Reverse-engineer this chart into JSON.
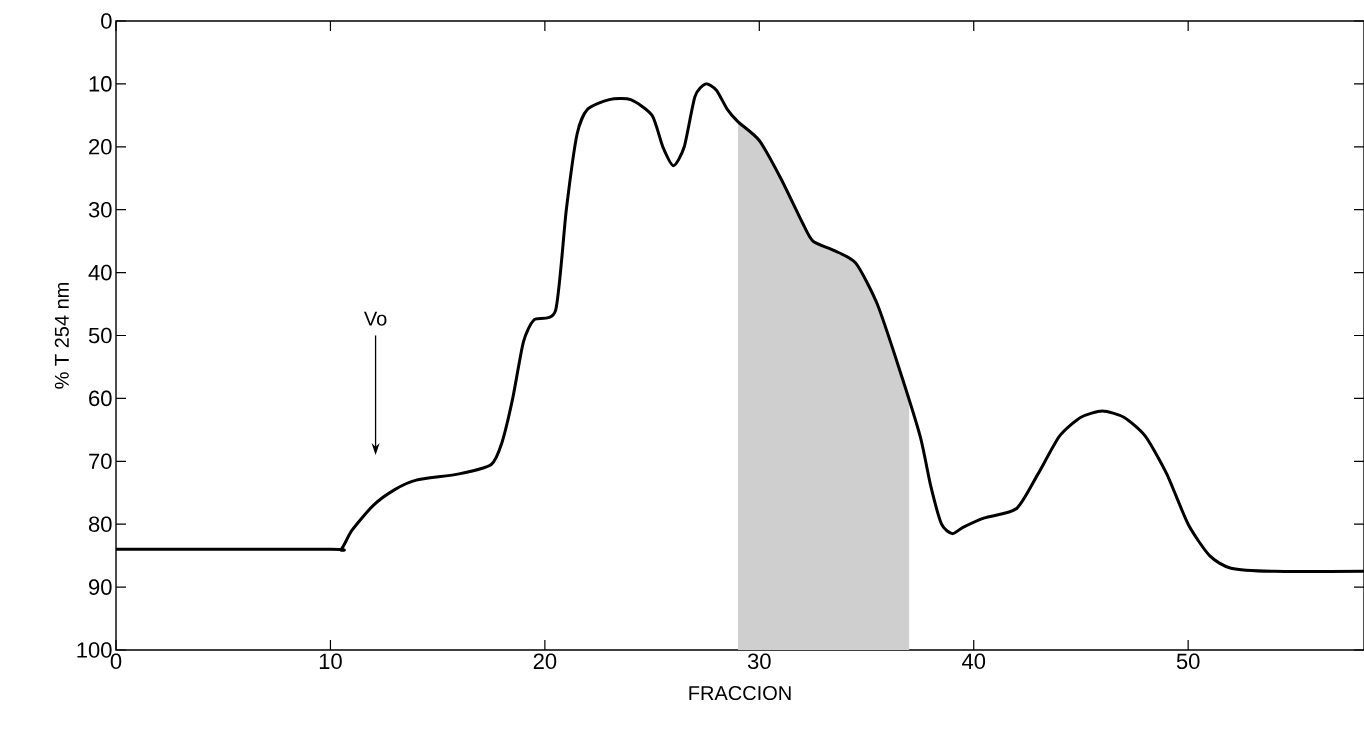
{
  "chart_data": {
    "type": "line",
    "xlabel": "FRACCION",
    "ylabel": "% T 254 nm",
    "x": [
      0,
      10,
      10.5,
      11,
      12,
      13,
      14,
      16,
      17.5,
      18,
      18.5,
      19,
      19.5,
      20.5,
      21,
      21.5,
      22,
      23,
      24,
      25,
      25.5,
      26,
      26.5,
      27,
      27.5,
      28,
      28.5,
      29,
      30,
      31,
      32,
      32.5,
      33.5,
      34.5,
      35.5,
      36.5,
      37.5,
      38,
      38.5,
      39,
      39.5,
      40.5,
      42,
      43,
      44,
      45,
      46,
      47,
      48,
      49,
      50,
      51,
      52,
      54,
      58.2
    ],
    "series": [
      {
        "color": "#000000",
        "values": [
          84,
          84,
          84,
          81,
          77,
          74.5,
          73,
          72,
          70.5,
          67,
          60,
          51,
          47.5,
          46,
          30,
          18,
          14,
          12.5,
          12.5,
          15,
          20,
          23,
          20,
          12,
          10,
          11,
          14,
          16,
          19,
          25,
          32,
          35,
          36.5,
          38.5,
          45,
          55,
          66,
          74,
          80,
          81.5,
          80.5,
          79,
          77.5,
          72,
          66,
          63,
          62,
          63,
          66,
          72,
          80,
          85,
          87,
          87.5,
          87.5
        ]
      }
    ],
    "xlim": [
      0,
      58.2
    ],
    "ylim": [
      100,
      0
    ],
    "xticks": [
      0,
      10,
      20,
      30,
      40,
      50
    ],
    "yticks": [
      0,
      10,
      20,
      30,
      40,
      50,
      60,
      70,
      80,
      90,
      100
    ],
    "bands": [
      {
        "axis": "x",
        "from": 29,
        "to": 37,
        "color": "#cfcfcf"
      }
    ],
    "annotations": [
      "Vo"
    ],
    "grid": false
  }
}
